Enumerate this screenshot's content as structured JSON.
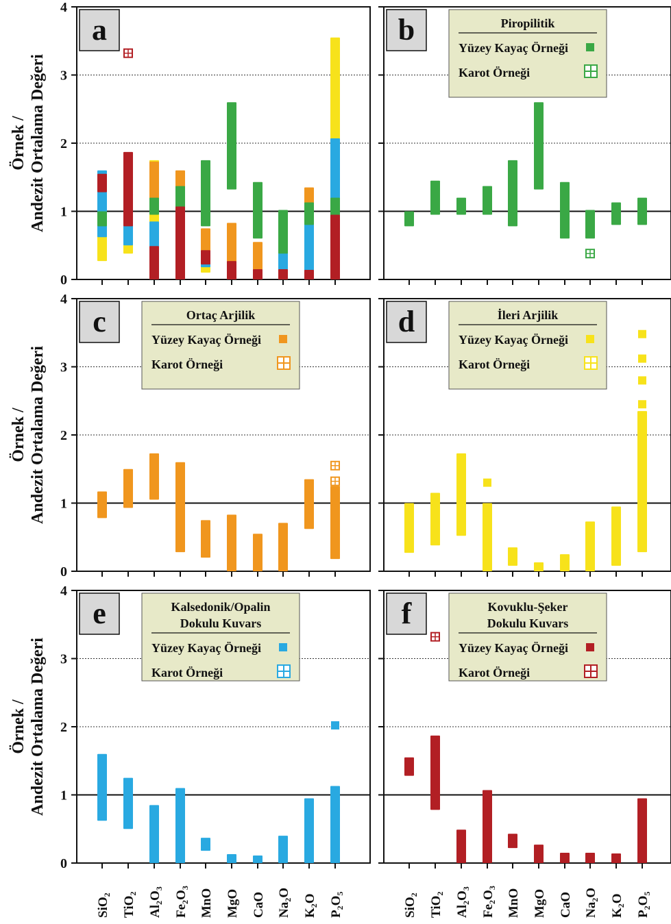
{
  "chart_data": [
    {
      "panel": "a",
      "type": "scatter",
      "ylabel": "Andezit  Ortalama Değeri",
      "ylabel_top": "Örnek /",
      "ylim": [
        0,
        4
      ],
      "yticks": [
        "0",
        "1",
        "2",
        "3",
        "4"
      ],
      "categories": [
        "SiO2",
        "TiO2",
        "Al2O3",
        "Fe2O3",
        "MnO",
        "MgO",
        "CaO",
        "Na2O",
        "K2O",
        "P2O5"
      ],
      "grid": "dashed at 2 and 3, solid at 1",
      "legend": null,
      "series": [
        {
          "color": "#f7e21b",
          "ranges": [
            [
              0.27,
              0.95
            ],
            [
              0.38,
              1.1
            ],
            [
              0.55,
              1.7
            ],
            [
              0.0,
              1.3
            ],
            [
              0.1,
              0.3
            ],
            [
              0.0,
              0.08
            ],
            [
              0.0,
              0.2
            ],
            [
              0.0,
              0.68
            ],
            [
              0.1,
              0.9
            ],
            [
              0.3,
              3.5
            ]
          ]
        },
        {
          "color": "#f0961e",
          "ranges": [
            [
              0.78,
              1.12
            ],
            [
              0.93,
              1.45
            ],
            [
              1.05,
              1.68
            ],
            [
              0.28,
              1.55
            ],
            [
              0.2,
              0.7
            ],
            [
              0.0,
              0.78
            ],
            [
              0.0,
              0.5
            ],
            [
              0.0,
              0.66
            ],
            [
              0.62,
              1.3
            ],
            [
              0.18,
              1.55
            ]
          ]
        },
        {
          "color": "#29a9e1",
          "ranges": [
            [
              0.62,
              1.55
            ],
            [
              0.5,
              1.2
            ],
            [
              0.0,
              0.8
            ],
            [
              0.0,
              1.05
            ],
            [
              0.18,
              0.32
            ],
            [
              0.0,
              0.08
            ],
            [
              0.0,
              0.06
            ],
            [
              0.0,
              0.35
            ],
            [
              0.0,
              0.9
            ],
            [
              0.0,
              2.02
            ]
          ]
        },
        {
          "color": "#3aa845",
          "ranges": [
            [
              0.78,
              0.95
            ],
            [
              0.95,
              1.4
            ],
            [
              0.95,
              1.15
            ],
            [
              0.95,
              1.32
            ],
            [
              0.78,
              1.7
            ],
            [
              1.32,
              2.55
            ],
            [
              0.6,
              1.38
            ],
            [
              0.38,
              0.97
            ],
            [
              0.8,
              1.08
            ],
            [
              0.78,
              1.15
            ]
          ]
        },
        {
          "color": "#b21f24",
          "ranges": [
            [
              1.28,
              1.5
            ],
            [
              0.78,
              1.82
            ],
            [
              0.0,
              0.44
            ],
            [
              0.0,
              1.02
            ],
            [
              0.22,
              0.38
            ],
            [
              0.0,
              0.22
            ],
            [
              0.0,
              0.1
            ],
            [
              0.0,
              0.1
            ],
            [
              0.0,
              0.09
            ],
            [
              0.0,
              0.9
            ]
          ]
        }
      ],
      "outliers": [
        {
          "category": "TiO2",
          "value": 3.32,
          "color": "#b21f24",
          "core": true
        }
      ]
    },
    {
      "panel": "b",
      "type": "scatter",
      "ylim": [
        0,
        4
      ],
      "categories": [
        "SiO2",
        "TiO2",
        "Al2O3",
        "Fe2O3",
        "MnO",
        "MgO",
        "CaO",
        "Na2O",
        "K2O",
        "P2O5"
      ],
      "legend": {
        "title": "Piropilitik",
        "surface": "Yüzey Kayaç Örneği",
        "core": "Karot Örneği"
      },
      "series": [
        {
          "color": "#3aa845",
          "ranges": [
            [
              0.78,
              0.95
            ],
            [
              0.95,
              1.4
            ],
            [
              0.95,
              1.15
            ],
            [
              0.95,
              1.32
            ],
            [
              0.78,
              1.7
            ],
            [
              1.32,
              2.55
            ],
            [
              0.6,
              1.38
            ],
            [
              0.6,
              0.97
            ],
            [
              0.8,
              1.08
            ],
            [
              0.8,
              1.15
            ]
          ]
        }
      ],
      "outliers": [
        {
          "category": "Na2O",
          "value": 0.38,
          "color": "#3aa845",
          "core": true
        }
      ]
    },
    {
      "panel": "c",
      "type": "scatter",
      "ylabel": "Andezit  Ortalama Değeri",
      "ylabel_top": "Örnek /",
      "ylim": [
        0,
        4
      ],
      "categories": [
        "SiO2",
        "TiO2",
        "Al2O3",
        "Fe2O3",
        "MnO",
        "MgO",
        "CaO",
        "Na2O",
        "K2O",
        "P2O5"
      ],
      "legend": {
        "title": "Ortaç Arjilik",
        "surface": "Yüzey Kayaç Örneği",
        "core": "Karot Örneği"
      },
      "series": [
        {
          "color": "#f0961e",
          "ranges": [
            [
              0.78,
              1.12
            ],
            [
              0.93,
              1.45
            ],
            [
              1.05,
              1.68
            ],
            [
              0.28,
              1.55
            ],
            [
              0.2,
              0.7
            ],
            [
              0.0,
              0.78
            ],
            [
              0.0,
              0.5
            ],
            [
              0.0,
              0.66
            ],
            [
              0.62,
              1.3
            ],
            [
              0.18,
              1.2
            ]
          ]
        }
      ],
      "outliers": [
        {
          "category": "P2O5",
          "value": 1.32,
          "color": "#f0961e",
          "core": true
        },
        {
          "category": "P2O5",
          "value": 1.55,
          "color": "#f0961e",
          "core": true
        }
      ]
    },
    {
      "panel": "d",
      "type": "scatter",
      "ylim": [
        0,
        4
      ],
      "categories": [
        "SiO2",
        "TiO2",
        "Al2O3",
        "Fe2O3",
        "MnO",
        "MgO",
        "CaO",
        "Na2O",
        "K2O",
        "P2O5"
      ],
      "legend": {
        "title": "İleri Arjilik",
        "surface": "Yüzey Kayaç Örneği",
        "core": "Karot Örneği"
      },
      "series": [
        {
          "color": "#f7e21b",
          "ranges": [
            [
              0.27,
              0.95
            ],
            [
              0.38,
              1.1
            ],
            [
              0.52,
              1.68
            ],
            [
              0.0,
              0.95
            ],
            [
              0.08,
              0.3
            ],
            [
              0.0,
              0.08
            ],
            [
              0.0,
              0.2
            ],
            [
              0.0,
              0.68
            ],
            [
              0.08,
              0.9
            ],
            [
              0.28,
              2.3
            ]
          ]
        }
      ],
      "outliers": [
        {
          "category": "Fe2O3",
          "value": 1.3,
          "color": "#f7e21b",
          "core": false
        },
        {
          "category": "P2O5",
          "value": 2.45,
          "color": "#f7e21b",
          "core": false
        },
        {
          "category": "P2O5",
          "value": 2.8,
          "color": "#f7e21b",
          "core": false
        },
        {
          "category": "P2O5",
          "value": 3.12,
          "color": "#f7e21b",
          "core": false
        },
        {
          "category": "P2O5",
          "value": 3.48,
          "color": "#f7e21b",
          "core": false
        }
      ]
    },
    {
      "panel": "e",
      "type": "scatter",
      "ylabel": "Andezit  Ortalama Değeri",
      "ylabel_top": "Örnek /",
      "ylim": [
        0,
        4
      ],
      "categories": [
        "SiO2",
        "TiO2",
        "Al2O3",
        "Fe2O3",
        "MnO",
        "MgO",
        "CaO",
        "Na2O",
        "K2O",
        "P2O5"
      ],
      "legend": {
        "title": "Kalsedonik/Opalin",
        "title2": "Dokulu Kuvars",
        "surface": "Yüzey Kayaç Örneği",
        "core": "Karot Örneği"
      },
      "series": [
        {
          "color": "#29a9e1",
          "ranges": [
            [
              0.62,
              1.55
            ],
            [
              0.5,
              1.2
            ],
            [
              0.0,
              0.8
            ],
            [
              0.0,
              1.05
            ],
            [
              0.18,
              0.32
            ],
            [
              0.0,
              0.08
            ],
            [
              0.0,
              0.06
            ],
            [
              0.0,
              0.35
            ],
            [
              0.0,
              0.9
            ],
            [
              0.0,
              1.08
            ]
          ]
        }
      ],
      "outliers": [
        {
          "category": "P2O5",
          "value": 2.02,
          "color": "#29a9e1",
          "core": false
        }
      ]
    },
    {
      "panel": "f",
      "type": "scatter",
      "ylim": [
        0,
        4
      ],
      "categories": [
        "SiO2",
        "TiO2",
        "Al2O3",
        "Fe2O3",
        "MnO",
        "MgO",
        "CaO",
        "Na2O",
        "K2O",
        "P2O5"
      ],
      "legend": {
        "title": "Kovuklu-Şeker",
        "title2": "Dokulu Kuvars",
        "surface": "Yüzey Kayaç Örneği",
        "core": "Karot Örneği"
      },
      "series": [
        {
          "color": "#b21f24",
          "ranges": [
            [
              1.28,
              1.5
            ],
            [
              0.78,
              1.82
            ],
            [
              0.0,
              0.44
            ],
            [
              0.0,
              1.02
            ],
            [
              0.22,
              0.38
            ],
            [
              0.0,
              0.22
            ],
            [
              0.0,
              0.1
            ],
            [
              0.0,
              0.1
            ],
            [
              0.0,
              0.09
            ],
            [
              0.0,
              0.9
            ]
          ]
        }
      ],
      "outliers": [
        {
          "category": "TiO2",
          "value": 3.32,
          "color": "#b21f24",
          "core": true
        }
      ]
    }
  ],
  "x_categories": [
    {
      "base": "SiO",
      "sub": "2",
      "base2": "",
      "sub2": ""
    },
    {
      "base": "TiO",
      "sub": "2",
      "base2": "",
      "sub2": ""
    },
    {
      "base": "Al",
      "sub": "2",
      "base2": "O",
      "sub2": "3"
    },
    {
      "base": "Fe",
      "sub": "2",
      "base2": "O",
      "sub2": "3"
    },
    {
      "base": "MnO",
      "sub": "",
      "base2": "",
      "sub2": ""
    },
    {
      "base": "MgO",
      "sub": "",
      "base2": "",
      "sub2": ""
    },
    {
      "base": "CaO",
      "sub": "",
      "base2": "",
      "sub2": ""
    },
    {
      "base": "Na",
      "sub": "2",
      "base2": "O",
      "sub2": ""
    },
    {
      "base": "K",
      "sub": "2",
      "base2": "O",
      "sub2": ""
    },
    {
      "base": "P",
      "sub": "2",
      "base2": "O",
      "sub2": "5"
    }
  ],
  "colors": {
    "legend_bg": "#e7e9c8",
    "letter_bg": "#d8d8d8"
  }
}
